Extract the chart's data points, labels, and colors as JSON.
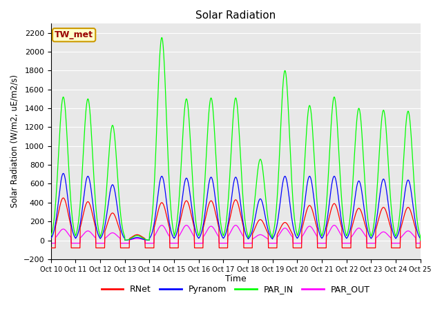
{
  "title": "Solar Radiation",
  "ylabel": "Solar Radiation (W/m2, uE/m2/s)",
  "xlabel": "Time",
  "ylim": [
    -200,
    2300
  ],
  "yticks": [
    -200,
    0,
    200,
    400,
    600,
    800,
    1000,
    1200,
    1400,
    1600,
    1800,
    2000,
    2200
  ],
  "plot_bg_color": "#e8e8e8",
  "grid_color": "white",
  "colors": {
    "RNet": "#ff0000",
    "Pyranom": "#0000ff",
    "PAR_IN": "#00ff00",
    "PAR_OUT": "#ff00ff"
  },
  "label_box": {
    "text": "TW_met",
    "facecolor": "#ffffcc",
    "edgecolor": "#cc9900",
    "textcolor": "#990000"
  },
  "x_tick_labels": [
    "Oct 10",
    "Oct 11",
    "Oct 12",
    "Oct 13",
    "Oct 14",
    "Oct 15",
    "Oct 16",
    "Oct 17",
    "Oct 18",
    "Oct 19",
    "Oct 20",
    "Oct 21",
    "Oct 22",
    "Oct 23",
    "Oct 24",
    "Oct 25"
  ],
  "n_days": 15,
  "pts_per_day": 96,
  "par_in_peaks": [
    1520,
    1500,
    1220,
    50,
    2150,
    1500,
    1510,
    1510,
    860,
    1800,
    1430,
    1520,
    1400,
    1380,
    1370
  ],
  "pyranom_peaks": [
    710,
    680,
    590,
    30,
    680,
    660,
    670,
    670,
    440,
    680,
    680,
    680,
    630,
    650,
    640
  ],
  "rnet_peaks": [
    450,
    410,
    290,
    60,
    400,
    420,
    420,
    430,
    220,
    190,
    370,
    390,
    340,
    350,
    350
  ],
  "par_out_peaks": [
    120,
    100,
    80,
    20,
    160,
    160,
    150,
    160,
    60,
    130,
    150,
    160,
    130,
    90,
    100
  ]
}
